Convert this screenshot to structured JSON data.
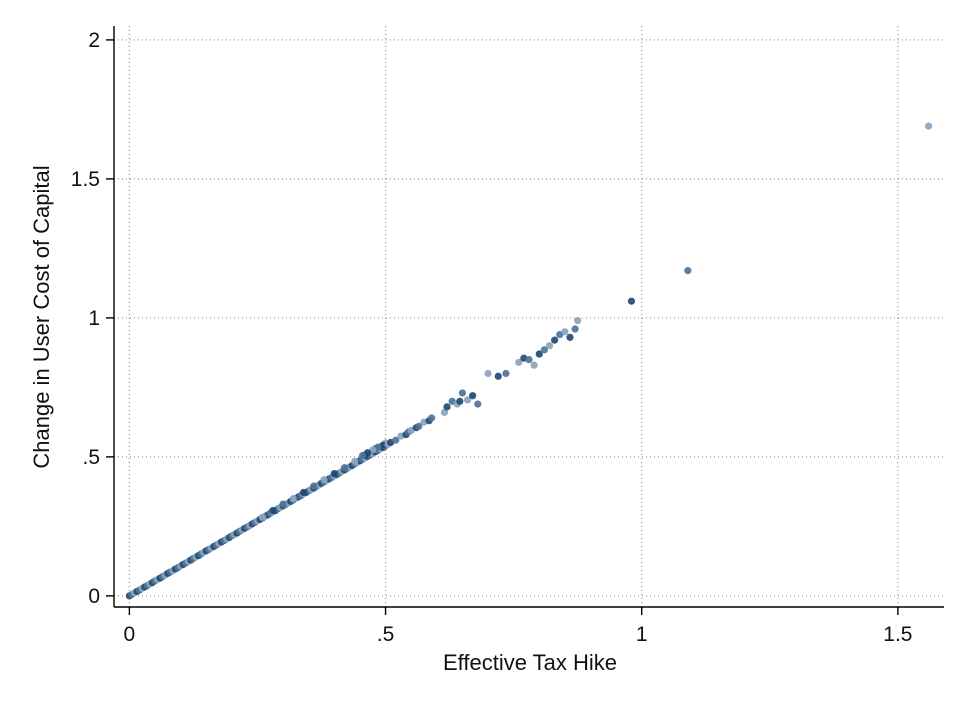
{
  "chart_data": {
    "type": "scatter",
    "title": "",
    "xlabel": "Effective Tax Hike",
    "ylabel": "Change in User Cost of Capital",
    "xlim": [
      -0.03,
      1.59
    ],
    "ylim": [
      -0.04,
      2.05
    ],
    "grid": true,
    "legend": "none",
    "x_ticks": [
      {
        "value": 0,
        "label": "0"
      },
      {
        "value": 0.5,
        "label": ".5"
      },
      {
        "value": 1,
        "label": "1"
      },
      {
        "value": 1.5,
        "label": "1.5"
      }
    ],
    "y_ticks": [
      {
        "value": 0,
        "label": "0"
      },
      {
        "value": 0.5,
        "label": ".5"
      },
      {
        "value": 1,
        "label": "1"
      },
      {
        "value": 1.5,
        "label": "1.5"
      },
      {
        "value": 2,
        "label": "2"
      }
    ],
    "colors": {
      "dark": "#1f4a73",
      "medium": "#4f7396",
      "light": "#8aa4bd",
      "grid": "#9a9a9a",
      "axis": "#000000"
    },
    "series": [
      {
        "points": [
          [
            0.0,
            0.0
          ],
          [
            0.005,
            0.005
          ],
          [
            0.01,
            0.011
          ],
          [
            0.015,
            0.016
          ],
          [
            0.02,
            0.021
          ],
          [
            0.025,
            0.027
          ],
          [
            0.03,
            0.032
          ],
          [
            0.035,
            0.037
          ],
          [
            0.04,
            0.043
          ],
          [
            0.045,
            0.048
          ],
          [
            0.05,
            0.054
          ],
          [
            0.055,
            0.059
          ],
          [
            0.06,
            0.064
          ],
          [
            0.065,
            0.07
          ],
          [
            0.07,
            0.075
          ],
          [
            0.075,
            0.081
          ],
          [
            0.08,
            0.086
          ],
          [
            0.085,
            0.091
          ],
          [
            0.09,
            0.097
          ],
          [
            0.095,
            0.102
          ],
          [
            0.1,
            0.108
          ],
          [
            0.105,
            0.113
          ],
          [
            0.11,
            0.118
          ],
          [
            0.115,
            0.124
          ],
          [
            0.12,
            0.129
          ],
          [
            0.125,
            0.135
          ],
          [
            0.13,
            0.14
          ],
          [
            0.135,
            0.145
          ],
          [
            0.14,
            0.151
          ],
          [
            0.145,
            0.156
          ],
          [
            0.15,
            0.162
          ],
          [
            0.155,
            0.167
          ],
          [
            0.16,
            0.172
          ],
          [
            0.165,
            0.178
          ],
          [
            0.17,
            0.183
          ],
          [
            0.175,
            0.189
          ],
          [
            0.18,
            0.194
          ],
          [
            0.185,
            0.199
          ],
          [
            0.19,
            0.205
          ],
          [
            0.195,
            0.21
          ],
          [
            0.2,
            0.216
          ],
          [
            0.205,
            0.221
          ],
          [
            0.21,
            0.226
          ],
          [
            0.215,
            0.232
          ],
          [
            0.22,
            0.237
          ],
          [
            0.225,
            0.243
          ],
          [
            0.23,
            0.248
          ],
          [
            0.235,
            0.253
          ],
          [
            0.24,
            0.259
          ],
          [
            0.245,
            0.264
          ],
          [
            0.25,
            0.27
          ],
          [
            0.255,
            0.275
          ],
          [
            0.26,
            0.28
          ],
          [
            0.265,
            0.286
          ],
          [
            0.27,
            0.291
          ],
          [
            0.275,
            0.297
          ],
          [
            0.28,
            0.302
          ],
          [
            0.285,
            0.307
          ],
          [
            0.29,
            0.313
          ],
          [
            0.295,
            0.318
          ],
          [
            0.3,
            0.324
          ],
          [
            0.305,
            0.329
          ],
          [
            0.31,
            0.334
          ],
          [
            0.315,
            0.34
          ],
          [
            0.32,
            0.345
          ],
          [
            0.325,
            0.351
          ],
          [
            0.33,
            0.356
          ],
          [
            0.335,
            0.361
          ],
          [
            0.34,
            0.367
          ],
          [
            0.345,
            0.372
          ],
          [
            0.35,
            0.378
          ],
          [
            0.355,
            0.383
          ],
          [
            0.36,
            0.388
          ],
          [
            0.365,
            0.394
          ],
          [
            0.37,
            0.399
          ],
          [
            0.375,
            0.405
          ],
          [
            0.38,
            0.41
          ],
          [
            0.385,
            0.415
          ],
          [
            0.39,
            0.421
          ],
          [
            0.395,
            0.426
          ],
          [
            0.4,
            0.432
          ],
          [
            0.405,
            0.437
          ],
          [
            0.41,
            0.442
          ],
          [
            0.415,
            0.448
          ],
          [
            0.42,
            0.453
          ],
          [
            0.425,
            0.459
          ],
          [
            0.43,
            0.464
          ],
          [
            0.435,
            0.469
          ],
          [
            0.44,
            0.475
          ],
          [
            0.445,
            0.48
          ],
          [
            0.45,
            0.486
          ],
          [
            0.455,
            0.491
          ],
          [
            0.46,
            0.496
          ],
          [
            0.465,
            0.502
          ],
          [
            0.47,
            0.507
          ],
          [
            0.475,
            0.513
          ],
          [
            0.48,
            0.518
          ],
          [
            0.485,
            0.523
          ],
          [
            0.49,
            0.529
          ],
          [
            0.495,
            0.534
          ],
          [
            0.5,
            0.54
          ],
          [
            0.26,
            0.283
          ],
          [
            0.28,
            0.307
          ],
          [
            0.3,
            0.33
          ],
          [
            0.32,
            0.35
          ],
          [
            0.34,
            0.372
          ],
          [
            0.36,
            0.395
          ],
          [
            0.38,
            0.418
          ],
          [
            0.4,
            0.44
          ],
          [
            0.42,
            0.461
          ],
          [
            0.44,
            0.484
          ],
          [
            0.46,
            0.506
          ],
          [
            0.48,
            0.53
          ],
          [
            0.5,
            0.55
          ],
          [
            0.495,
            0.542
          ],
          [
            0.485,
            0.535
          ],
          [
            0.475,
            0.525
          ],
          [
            0.465,
            0.515
          ],
          [
            0.455,
            0.505
          ],
          [
            0.505,
            0.545
          ],
          [
            0.51,
            0.552
          ],
          [
            0.52,
            0.56
          ],
          [
            0.53,
            0.575
          ],
          [
            0.54,
            0.58
          ],
          [
            0.545,
            0.59
          ],
          [
            0.55,
            0.595
          ],
          [
            0.56,
            0.605
          ],
          [
            0.565,
            0.61
          ],
          [
            0.575,
            0.625
          ],
          [
            0.585,
            0.63
          ],
          [
            0.59,
            0.64
          ],
          [
            0.615,
            0.66
          ],
          [
            0.62,
            0.68
          ],
          [
            0.63,
            0.7
          ],
          [
            0.64,
            0.69
          ],
          [
            0.645,
            0.7
          ],
          [
            0.65,
            0.73
          ],
          [
            0.66,
            0.705
          ],
          [
            0.67,
            0.72
          ],
          [
            0.68,
            0.69
          ],
          [
            0.7,
            0.8
          ],
          [
            0.72,
            0.79
          ],
          [
            0.735,
            0.8
          ],
          [
            0.76,
            0.84
          ],
          [
            0.77,
            0.855
          ],
          [
            0.78,
            0.85
          ],
          [
            0.79,
            0.83
          ],
          [
            0.8,
            0.87
          ],
          [
            0.81,
            0.885
          ],
          [
            0.82,
            0.9
          ],
          [
            0.83,
            0.92
          ],
          [
            0.84,
            0.94
          ],
          [
            0.85,
            0.95
          ],
          [
            0.86,
            0.93
          ],
          [
            0.87,
            0.96
          ],
          [
            0.875,
            0.99
          ],
          [
            0.98,
            1.06
          ],
          [
            1.09,
            1.17
          ],
          [
            1.56,
            1.69
          ]
        ]
      }
    ]
  }
}
